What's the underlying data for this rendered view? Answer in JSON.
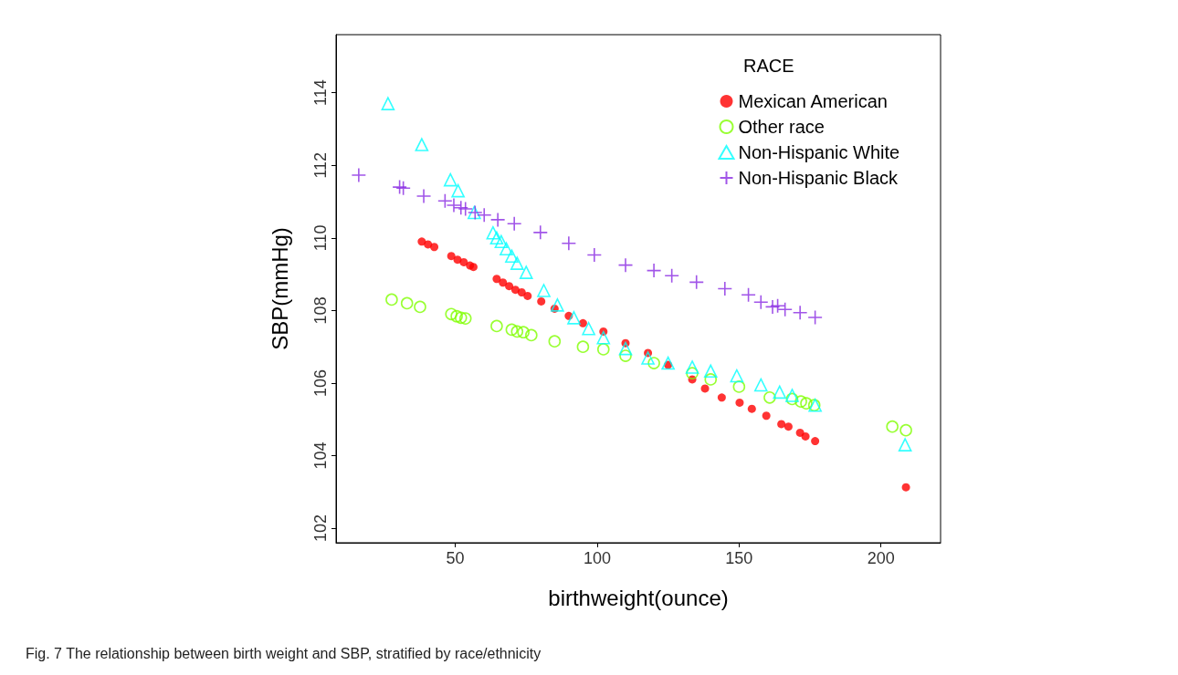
{
  "chart_data": {
    "type": "scatter",
    "xlabel": "birthweight(ounce)",
    "ylabel": "SBP(mmHg)",
    "legend_title": "RACE",
    "legend": "top right",
    "grid": false,
    "xlim": [
      8,
      221
    ],
    "xticks": [
      50,
      100,
      150,
      200
    ],
    "ylim": [
      101.6,
      115.6
    ],
    "yticks": [
      102,
      104,
      106,
      108,
      110,
      112,
      114
    ],
    "annotations": [
      "Fig. 7 The relationship between birth weight and SBP, stratified by race/ethnicity"
    ],
    "series": [
      {
        "name": "Mexican American",
        "color": "#ff0000",
        "marker": "circle",
        "x": [
          38.2,
          40.4,
          42.6,
          48.6,
          50.8,
          53,
          55.2,
          56.4,
          64.6,
          66.8,
          69,
          71.2,
          73.4,
          75.5,
          80.3,
          85,
          90,
          95,
          102.2,
          110,
          117.9,
          125,
          133.5,
          138,
          143.9,
          150.2,
          154.5,
          159.6,
          164.9,
          167.4,
          171.5,
          173.4,
          176.8,
          208.8
        ],
        "values": [
          109.9,
          109.82,
          109.75,
          109.5,
          109.4,
          109.33,
          109.24,
          109.2,
          108.87,
          108.77,
          108.67,
          108.57,
          108.5,
          108.4,
          108.25,
          108.05,
          107.85,
          107.65,
          107.42,
          107.1,
          106.83,
          106.5,
          106.1,
          105.85,
          105.6,
          105.46,
          105.29,
          105.1,
          104.87,
          104.8,
          104.63,
          104.53,
          104.4,
          103.13
        ]
      },
      {
        "name": "Other race",
        "color": "#7fff00",
        "marker": "circle",
        "x": [
          27.6,
          33,
          37.6,
          48.6,
          50.5,
          52,
          53.6,
          64.6,
          69.9,
          71.8,
          74,
          76.8,
          85,
          95,
          102.2,
          110,
          120,
          133.5,
          140,
          150,
          160.8,
          168.7,
          171.8,
          173.7,
          176.5,
          204,
          208.8
        ],
        "values": [
          108.3,
          108.2,
          108.1,
          107.9,
          107.84,
          107.8,
          107.78,
          107.57,
          107.47,
          107.42,
          107.4,
          107.32,
          107.15,
          107.0,
          106.93,
          106.75,
          106.55,
          106.27,
          106.1,
          105.9,
          105.6,
          105.56,
          105.49,
          105.44,
          105.39,
          104.8,
          104.7
        ]
      },
      {
        "name": "Non-Hispanic White",
        "color": "#00ffff",
        "marker": "triangle",
        "x": [
          26.3,
          38.2,
          48.3,
          51,
          56.7,
          63.3,
          64.6,
          66.2,
          68,
          69.9,
          71.8,
          75,
          81.2,
          86,
          91.8,
          97,
          102.2,
          110,
          117.9,
          125,
          133.5,
          140,
          149.2,
          157.7,
          164.3,
          168.7,
          176.8,
          208.5
        ],
        "values": [
          113.7,
          112.57,
          111.6,
          111.3,
          110.7,
          110.14,
          110.0,
          109.9,
          109.7,
          109.5,
          109.3,
          109.05,
          108.55,
          108.15,
          107.8,
          107.5,
          107.25,
          106.95,
          106.69,
          106.55,
          106.44,
          106.33,
          106.2,
          105.95,
          105.75,
          105.66,
          105.39,
          104.3
        ]
      },
      {
        "name": "Non-Hispanic Black",
        "color": "#8a2be2",
        "marker": "cross",
        "x": [
          16,
          30.4,
          31.7,
          38.9,
          46.4,
          49.5,
          52,
          53.6,
          57,
          60.2,
          65,
          70.8,
          80,
          90,
          99,
          110,
          120,
          126.3,
          135,
          145,
          153.3,
          157.7,
          161.8,
          163.6,
          166.2,
          171.5,
          176.8
        ],
        "values": [
          111.73,
          111.4,
          111.37,
          111.15,
          111.02,
          110.9,
          110.83,
          110.8,
          110.7,
          110.63,
          110.5,
          110.39,
          110.15,
          109.85,
          109.53,
          109.25,
          109.1,
          108.96,
          108.78,
          108.6,
          108.43,
          108.23,
          108.1,
          108.13,
          108.03,
          107.94,
          107.81
        ]
      }
    ]
  }
}
